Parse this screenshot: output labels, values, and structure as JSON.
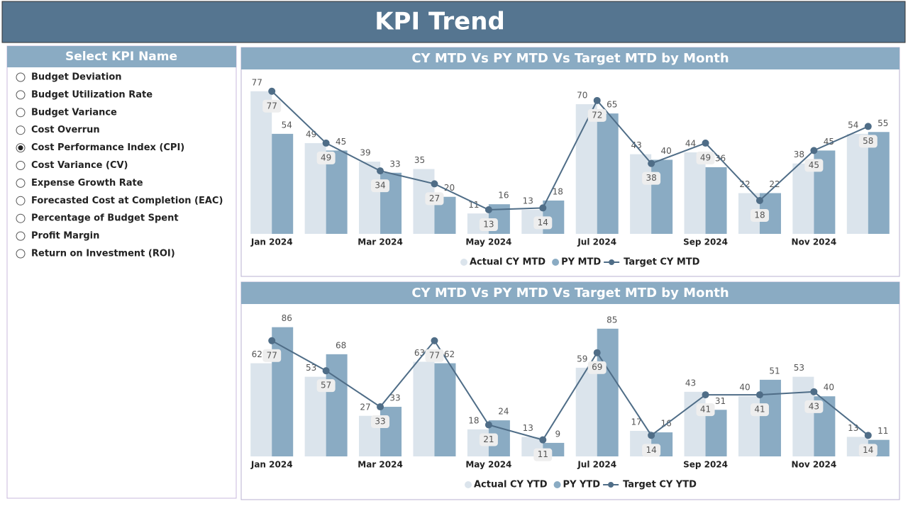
{
  "header": {
    "title": "KPI Trend"
  },
  "slicer": {
    "title": "Select KPI Name",
    "selected_index": 4,
    "options": [
      "Budget Deviation",
      "Budget Utilization Rate",
      "Budget Variance",
      "Cost Overrun",
      "Cost Performance Index (CPI)",
      "Cost Variance (CV)",
      "Expense Growth Rate",
      "Forecasted Cost at Completion (EAC)",
      "Percentage of Budget Spent",
      "Profit Margin",
      "Return on Investment (ROI)"
    ]
  },
  "chart_data": [
    {
      "type": "bar-line",
      "title": "CY MTD Vs PY MTD Vs Target MTD by Month",
      "categories": [
        "Jan 2024",
        null,
        "Mar 2024",
        null,
        "May 2024",
        null,
        "Jul 2024",
        null,
        "Sep 2024",
        null,
        "Nov 2024",
        null
      ],
      "ylim": [
        0,
        88
      ],
      "series": [
        {
          "name": "Actual CY MTD",
          "color": "#dbe4ec",
          "kind": "bar",
          "values": [
            77,
            49,
            39,
            35,
            11,
            13,
            70,
            43,
            44,
            22,
            38,
            54
          ]
        },
        {
          "name": "PY MTD",
          "color": "#8aabc3",
          "kind": "bar",
          "values": [
            54,
            45,
            33,
            20,
            16,
            18,
            65,
            40,
            36,
            22,
            45,
            55
          ]
        },
        {
          "name": "Target CY MTD",
          "color": "#4f6d87",
          "kind": "line",
          "values": [
            77,
            49,
            34,
            27,
            13,
            14,
            72,
            38,
            49,
            18,
            45,
            58
          ]
        }
      ]
    },
    {
      "type": "bar-line",
      "title": "CY MTD Vs PY MTD Vs Target MTD by Month",
      "categories": [
        "Jan 2024",
        null,
        "Mar 2024",
        null,
        "May 2024",
        null,
        "Jul 2024",
        null,
        "Sep 2024",
        null,
        "Nov 2024",
        null
      ],
      "ylim": [
        0,
        100
      ],
      "series": [
        {
          "name": "Actual CY YTD",
          "color": "#dbe4ec",
          "kind": "bar",
          "values": [
            62,
            53,
            27,
            63,
            18,
            13,
            59,
            17,
            43,
            40,
            53,
            13
          ]
        },
        {
          "name": "PY YTD",
          "color": "#8aabc3",
          "kind": "bar",
          "values": [
            86,
            68,
            33,
            62,
            24,
            9,
            85,
            16,
            31,
            51,
            40,
            11
          ]
        },
        {
          "name": "Target CY YTD",
          "color": "#4f6d87",
          "kind": "line",
          "values": [
            77,
            57,
            33,
            77,
            21,
            11,
            69,
            14,
            41,
            41,
            43,
            14
          ]
        }
      ]
    }
  ]
}
